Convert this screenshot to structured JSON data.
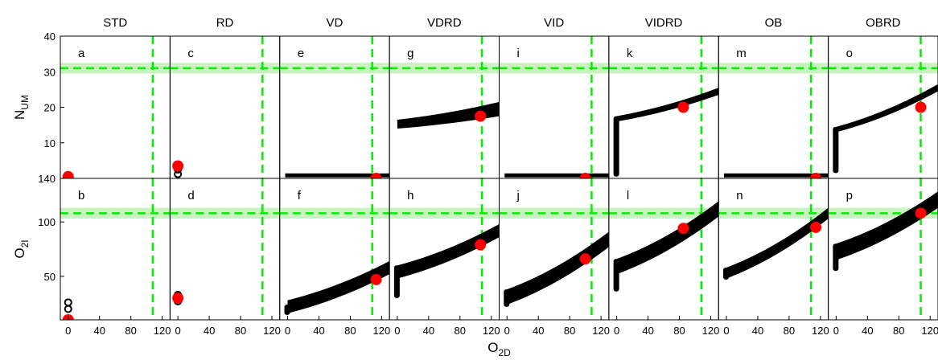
{
  "chart_data": {
    "type": "scatter",
    "columns": [
      "STD",
      "RD",
      "VD",
      "VDRD",
      "VID",
      "VIDRD",
      "OB",
      "OBRD"
    ],
    "xlabel": {
      "main": "O",
      "sub": "2D"
    },
    "x_ticks": [
      "0",
      "40",
      "80",
      "120"
    ],
    "x_ticks_overlap": [
      "0",
      "40",
      "80",
      "120",
      "0",
      "40",
      "80",
      "120",
      "0",
      "40",
      "80",
      "120",
      "0",
      "40",
      "80",
      "120",
      "0",
      "40",
      "80",
      "120",
      "0",
      "40",
      "80",
      "120",
      "0",
      "40",
      "80",
      "120",
      "0",
      "40",
      "80",
      "120"
    ],
    "xlim": [
      -10,
      130
    ],
    "rows": [
      {
        "ylabel": {
          "main": "N",
          "sub": "UM"
        },
        "ylim": [
          0,
          40
        ],
        "y_ticks": [
          "40",
          "30",
          "20",
          "10"
        ],
        "y_tick_values": [
          40,
          30,
          20,
          10
        ],
        "observed_y": 31,
        "observed_band": [
          29.5,
          32.5
        ],
        "observed_x": 108,
        "panels": [
          {
            "letter": "a",
            "cloud": {
              "kind": "points",
              "pts": [
                [
                  0,
                  0.5
                ]
              ]
            },
            "marker": [
              0,
              0.5
            ]
          },
          {
            "letter": "c",
            "cloud": {
              "kind": "points",
              "pts": [
                [
                  0,
                  3.5
                ],
                [
                  0,
                  2.5
                ],
                [
                  0,
                  1.2
                ]
              ]
            },
            "marker": [
              0,
              3.5
            ]
          },
          {
            "letter": "e",
            "cloud": {
              "kind": "flat",
              "x0": 0,
              "x1": 130,
              "y": 0.5
            },
            "marker": [
              113,
              0
            ]
          },
          {
            "letter": "g",
            "cloud": {
              "kind": "band",
              "x0": 0,
              "x1": 130,
              "lo0": 14,
              "lo1": 17.5,
              "hi0": 16.5,
              "hi1": 21.5
            },
            "marker": [
              106,
              17.5
            ]
          },
          {
            "letter": "i",
            "cloud": {
              "kind": "flat",
              "x0": 0,
              "x1": 130,
              "y": 0.5
            },
            "marker": [
              100,
              0
            ]
          },
          {
            "letter": "k",
            "cloud": {
              "kind": "band",
              "x0": 0,
              "x1": 130,
              "lo0": 16,
              "lo1": 23.5,
              "hi0": 17.5,
              "hi1": 25.5,
              "spike": 0.5
            },
            "marker": [
              85,
              20
            ]
          },
          {
            "letter": "m",
            "cloud": {
              "kind": "flat",
              "x0": 0,
              "x1": 130,
              "y": 0.5
            },
            "marker": [
              114,
              0
            ]
          },
          {
            "letter": "o",
            "cloud": {
              "kind": "band",
              "x0": 0,
              "x1": 130,
              "lo0": 13,
              "lo1": 24.5,
              "hi0": 14.5,
              "hi1": 26.5,
              "spike": 1.5
            },
            "marker": [
              108,
              20
            ]
          }
        ]
      },
      {
        "ylabel": {
          "main": "O",
          "sub": "2I"
        },
        "ylim": [
          10,
          140
        ],
        "y_ticks": [
          "140",
          "100",
          "50"
        ],
        "y_tick_values": [
          140,
          100,
          50
        ],
        "observed_y": 108,
        "observed_band": [
          103,
          113
        ],
        "observed_x": 108,
        "panels": [
          {
            "letter": "b",
            "cloud": {
              "kind": "points",
              "pts": [
                [
                  0,
                  26
                ],
                [
                  0,
                  20
                ]
              ]
            },
            "marker": [
              0,
              10
            ]
          },
          {
            "letter": "d",
            "cloud": {
              "kind": "points",
              "pts": [
                [
                  0,
                  33
                ],
                [
                  0,
                  30
                ],
                [
                  0,
                  27
                ]
              ]
            },
            "marker": [
              0,
              30
            ]
          },
          {
            "letter": "f",
            "cloud": {
              "kind": "band",
              "x0": 0,
              "x1": 130,
              "lo0": 16,
              "lo1": 52,
              "hi0": 28,
              "hi1": 64,
              "stub": 24
            },
            "marker": [
              113,
              47
            ]
          },
          {
            "letter": "h",
            "cloud": {
              "kind": "band",
              "x0": 0,
              "x1": 130,
              "lo0": 48,
              "lo1": 86,
              "hi0": 60,
              "hi1": 98,
              "spike": 30
            },
            "marker": [
              106,
              79
            ]
          },
          {
            "letter": "j",
            "cloud": {
              "kind": "band",
              "x0": 0,
              "x1": 130,
              "lo0": 24,
              "lo1": 77,
              "hi0": 38,
              "hi1": 91,
              "spike": 22
            },
            "marker": [
              100,
              66
            ]
          },
          {
            "letter": "l",
            "cloud": {
              "kind": "band",
              "x0": 0,
              "x1": 130,
              "lo0": 52,
              "lo1": 105,
              "hi0": 66,
              "hi1": 119,
              "spike": 36
            },
            "marker": [
              85,
              94
            ]
          },
          {
            "letter": "n",
            "cloud": {
              "kind": "band",
              "x0": 0,
              "x1": 130,
              "lo0": 48,
              "lo1": 103,
              "hi0": 58,
              "hi1": 113,
              "spike": 47
            },
            "marker": [
              114,
              95
            ]
          },
          {
            "letter": "p",
            "cloud": {
              "kind": "band",
              "x0": 0,
              "x1": 130,
              "lo0": 65,
              "lo1": 113,
              "hi0": 80,
              "hi1": 128,
              "spike": 55
            },
            "marker": [
              108,
              108
            ]
          }
        ]
      }
    ],
    "colors": {
      "cloud": "#000000",
      "marker": "#ff0000",
      "observed_line": "#00ee00",
      "observed_band": "#c8f2c0"
    }
  }
}
